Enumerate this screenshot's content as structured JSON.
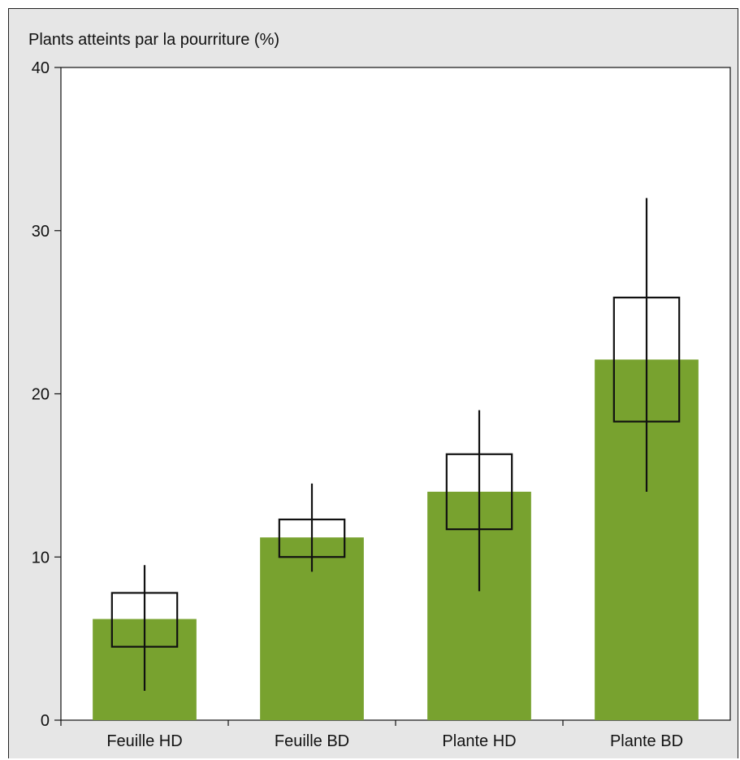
{
  "chart_data": {
    "type": "bar",
    "title": "",
    "ylabel": "Plants atteints par la pourriture (%)",
    "xlabel": "",
    "ylim": [
      0,
      40
    ],
    "yticks": [
      0,
      10,
      20,
      30,
      40
    ],
    "grid": false,
    "categories": [
      "Feuille HD",
      "Feuille BD",
      "Plante HD",
      "Plante BD"
    ],
    "values": [
      6.2,
      11.2,
      14.0,
      22.1
    ],
    "box_ranges": [
      [
        4.5,
        7.8
      ],
      [
        10.0,
        12.3
      ],
      [
        11.7,
        16.3
      ],
      [
        18.3,
        25.9
      ]
    ],
    "whisker_ranges": [
      [
        1.8,
        9.5
      ],
      [
        9.1,
        14.5
      ],
      [
        7.9,
        19.0
      ],
      [
        14.0,
        32.0
      ]
    ],
    "colors": {
      "bar": "#78a22f",
      "panel": "#e6e6e6",
      "plot_area": "#ffffff",
      "ink": "#111111"
    }
  }
}
